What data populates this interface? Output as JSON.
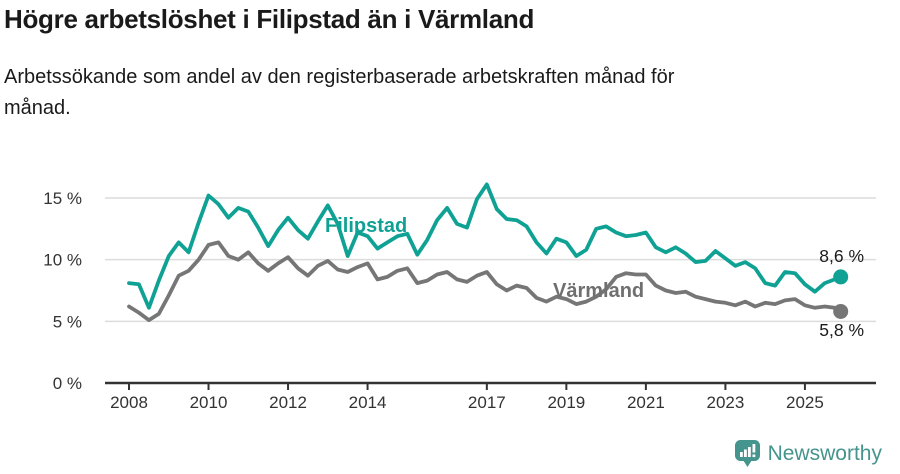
{
  "header": {
    "title": "Högre arbetslöshet i Filipstad än i Värmland",
    "subtitle_line1": "Arbetssökande som andel av den registerbaserade arbetskraften månad för",
    "subtitle_line2": "månad."
  },
  "chart_data": {
    "type": "line",
    "title": "Högre arbetslöshet i Filipstad än i Värmland",
    "subtitle": "Arbetssökande som andel av den registerbaserade arbetskraften månad för månad.",
    "unit": "%",
    "grid": "horizontal",
    "legend_position": "inline-labels",
    "x_axis": {
      "ticks": [
        2008,
        2010,
        2012,
        2014,
        2017,
        2019,
        2021,
        2023,
        2025
      ],
      "range": [
        2008,
        2025.95
      ]
    },
    "y_axis": {
      "range": [
        0,
        16.5
      ],
      "ticks": [
        {
          "value": 15,
          "label": "15 %"
        },
        {
          "value": 10,
          "label": "10 %"
        },
        {
          "value": 5,
          "label": "5 %"
        },
        {
          "value": 0,
          "label": "0 %"
        }
      ]
    },
    "series": [
      {
        "name": "Filipstad",
        "color": "#0FA294",
        "label_color": "#0FA294",
        "end_label": "8,6 %",
        "end_value": 8.6,
        "points": [
          [
            2008.0,
            8.1
          ],
          [
            2008.25,
            8.0
          ],
          [
            2008.5,
            6.1
          ],
          [
            2008.75,
            8.3
          ],
          [
            2009.0,
            10.3
          ],
          [
            2009.25,
            11.4
          ],
          [
            2009.5,
            10.6
          ],
          [
            2009.75,
            13.0
          ],
          [
            2010.0,
            15.2
          ],
          [
            2010.25,
            14.5
          ],
          [
            2010.5,
            13.4
          ],
          [
            2010.75,
            14.2
          ],
          [
            2011.0,
            13.9
          ],
          [
            2011.25,
            12.6
          ],
          [
            2011.5,
            11.1
          ],
          [
            2011.75,
            12.4
          ],
          [
            2012.0,
            13.4
          ],
          [
            2012.25,
            12.4
          ],
          [
            2012.5,
            11.7
          ],
          [
            2012.75,
            13.1
          ],
          [
            2013.0,
            14.4
          ],
          [
            2013.25,
            12.9
          ],
          [
            2013.5,
            10.3
          ],
          [
            2013.75,
            12.2
          ],
          [
            2014.0,
            11.9
          ],
          [
            2014.25,
            10.9
          ],
          [
            2014.5,
            11.4
          ],
          [
            2014.75,
            11.9
          ],
          [
            2015.0,
            12.1
          ],
          [
            2015.25,
            10.4
          ],
          [
            2015.5,
            11.6
          ],
          [
            2015.75,
            13.2
          ],
          [
            2016.0,
            14.2
          ],
          [
            2016.25,
            12.9
          ],
          [
            2016.5,
            12.6
          ],
          [
            2016.75,
            14.9
          ],
          [
            2017.0,
            16.1
          ],
          [
            2017.25,
            14.1
          ],
          [
            2017.5,
            13.3
          ],
          [
            2017.75,
            13.2
          ],
          [
            2018.0,
            12.7
          ],
          [
            2018.25,
            11.4
          ],
          [
            2018.5,
            10.5
          ],
          [
            2018.75,
            11.7
          ],
          [
            2019.0,
            11.4
          ],
          [
            2019.25,
            10.3
          ],
          [
            2019.5,
            10.8
          ],
          [
            2019.75,
            12.5
          ],
          [
            2020.0,
            12.7
          ],
          [
            2020.25,
            12.2
          ],
          [
            2020.5,
            11.9
          ],
          [
            2020.75,
            12.0
          ],
          [
            2021.0,
            12.2
          ],
          [
            2021.25,
            11.0
          ],
          [
            2021.5,
            10.6
          ],
          [
            2021.75,
            11.0
          ],
          [
            2022.0,
            10.5
          ],
          [
            2022.25,
            9.8
          ],
          [
            2022.5,
            9.9
          ],
          [
            2022.75,
            10.7
          ],
          [
            2023.0,
            10.1
          ],
          [
            2023.25,
            9.5
          ],
          [
            2023.5,
            9.8
          ],
          [
            2023.75,
            9.3
          ],
          [
            2024.0,
            8.1
          ],
          [
            2024.25,
            7.9
          ],
          [
            2024.5,
            9.0
          ],
          [
            2024.75,
            8.9
          ],
          [
            2025.0,
            8.0
          ],
          [
            2025.25,
            7.4
          ],
          [
            2025.5,
            8.1
          ],
          [
            2025.75,
            8.4
          ],
          [
            2025.9,
            8.6
          ]
        ]
      },
      {
        "name": "Värmland",
        "color": "#767676",
        "label_color": "#6F6F6F",
        "end_label": "5,8 %",
        "end_value": 5.8,
        "points": [
          [
            2008.0,
            6.2
          ],
          [
            2008.25,
            5.7
          ],
          [
            2008.5,
            5.1
          ],
          [
            2008.75,
            5.6
          ],
          [
            2009.0,
            7.1
          ],
          [
            2009.25,
            8.7
          ],
          [
            2009.5,
            9.1
          ],
          [
            2009.75,
            10.0
          ],
          [
            2010.0,
            11.2
          ],
          [
            2010.25,
            11.4
          ],
          [
            2010.5,
            10.3
          ],
          [
            2010.75,
            10.0
          ],
          [
            2011.0,
            10.6
          ],
          [
            2011.25,
            9.7
          ],
          [
            2011.5,
            9.1
          ],
          [
            2011.75,
            9.7
          ],
          [
            2012.0,
            10.2
          ],
          [
            2012.25,
            9.3
          ],
          [
            2012.5,
            8.7
          ],
          [
            2012.75,
            9.5
          ],
          [
            2013.0,
            9.9
          ],
          [
            2013.25,
            9.2
          ],
          [
            2013.5,
            9.0
          ],
          [
            2013.75,
            9.4
          ],
          [
            2014.0,
            9.7
          ],
          [
            2014.25,
            8.4
          ],
          [
            2014.5,
            8.6
          ],
          [
            2014.75,
            9.1
          ],
          [
            2015.0,
            9.3
          ],
          [
            2015.25,
            8.1
          ],
          [
            2015.5,
            8.3
          ],
          [
            2015.75,
            8.8
          ],
          [
            2016.0,
            9.0
          ],
          [
            2016.25,
            8.4
          ],
          [
            2016.5,
            8.2
          ],
          [
            2016.75,
            8.7
          ],
          [
            2017.0,
            9.0
          ],
          [
            2017.25,
            8.0
          ],
          [
            2017.5,
            7.5
          ],
          [
            2017.75,
            7.9
          ],
          [
            2018.0,
            7.7
          ],
          [
            2018.25,
            6.9
          ],
          [
            2018.5,
            6.6
          ],
          [
            2018.75,
            7.0
          ],
          [
            2019.0,
            6.8
          ],
          [
            2019.25,
            6.4
          ],
          [
            2019.5,
            6.6
          ],
          [
            2019.75,
            7.0
          ],
          [
            2020.0,
            7.6
          ],
          [
            2020.25,
            8.6
          ],
          [
            2020.5,
            8.9
          ],
          [
            2020.75,
            8.8
          ],
          [
            2021.0,
            8.8
          ],
          [
            2021.25,
            7.9
          ],
          [
            2021.5,
            7.5
          ],
          [
            2021.75,
            7.3
          ],
          [
            2022.0,
            7.4
          ],
          [
            2022.25,
            7.0
          ],
          [
            2022.5,
            6.8
          ],
          [
            2022.75,
            6.6
          ],
          [
            2023.0,
            6.5
          ],
          [
            2023.25,
            6.3
          ],
          [
            2023.5,
            6.6
          ],
          [
            2023.75,
            6.2
          ],
          [
            2024.0,
            6.5
          ],
          [
            2024.25,
            6.4
          ],
          [
            2024.5,
            6.7
          ],
          [
            2024.75,
            6.8
          ],
          [
            2025.0,
            6.3
          ],
          [
            2025.25,
            6.1
          ],
          [
            2025.5,
            6.2
          ],
          [
            2025.75,
            6.1
          ],
          [
            2025.9,
            5.8
          ]
        ]
      }
    ],
    "colors": {
      "grid": "#DCDCDC",
      "axis": "#333333",
      "tick_text": "#333333",
      "annotation_text": "#1a1a1a"
    }
  },
  "branding": {
    "logo_text": "Newsworthy",
    "logo_color": "#45948E"
  }
}
